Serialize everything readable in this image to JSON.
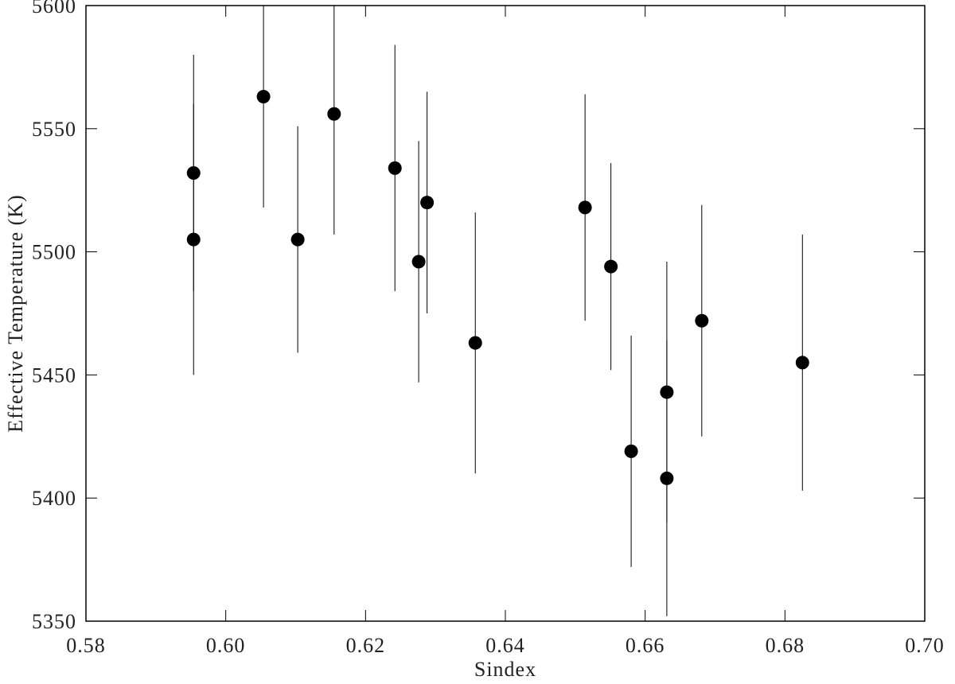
{
  "chart_data": {
    "type": "scatter",
    "x_label": "Sindex",
    "y_label": "Effective Temperature (K)",
    "color": "#000000",
    "x": [
      0.5954,
      0.5954,
      0.6054,
      0.6103,
      0.6155,
      0.6242,
      0.6276,
      0.6288,
      0.6357,
      0.6514,
      0.6551,
      0.658,
      0.6631,
      0.6631,
      0.6681,
      0.6825
    ],
    "values": [
      5532,
      5505,
      5563,
      5505,
      5556,
      5534,
      5496,
      5520,
      5463,
      5518,
      5494,
      5419,
      5443,
      5408,
      5472,
      5455
    ],
    "errors": [
      48,
      55,
      45,
      46,
      49,
      50,
      49,
      45,
      53,
      46,
      42,
      47,
      53,
      56,
      47,
      52
    ],
    "xlim": [
      0.58,
      0.7
    ],
    "xticks": [
      {
        "value": 0.58,
        "label": "0.58"
      },
      {
        "value": 0.6,
        "label": "0.60"
      },
      {
        "value": 0.62,
        "label": "0.62"
      },
      {
        "value": 0.64,
        "label": "0.64"
      },
      {
        "value": 0.66,
        "label": "0.66"
      },
      {
        "value": 0.68,
        "label": "0.68"
      },
      {
        "value": 0.7,
        "label": "0.70"
      }
    ],
    "ylim": [
      5350,
      5600
    ],
    "yticks": [
      5350,
      5400,
      5450,
      5500,
      5550,
      5600
    ]
  }
}
